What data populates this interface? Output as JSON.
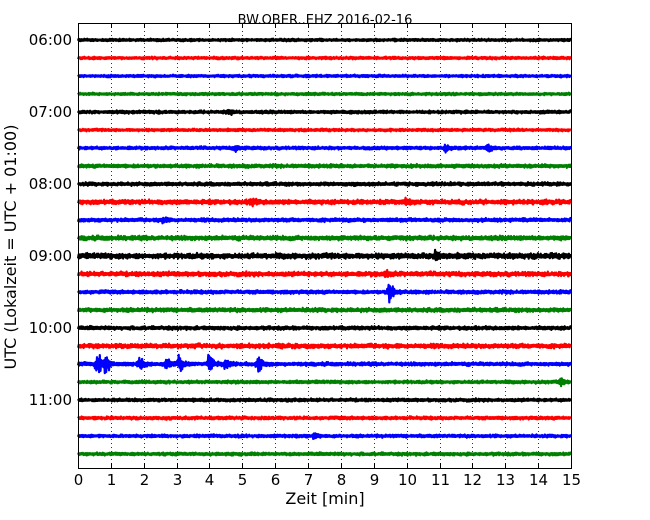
{
  "chart_data": {
    "type": "line",
    "title": "BW.OBER..EHZ 2016-02-16",
    "xlabel": "Zeit  [min]",
    "ylabel": "UTC (Lokalzeit = UTC + 01:00)",
    "xlim": [
      0,
      15
    ],
    "x_ticks": [
      "0",
      "1",
      "2",
      "3",
      "4",
      "5",
      "6",
      "7",
      "8",
      "9",
      "10",
      "11",
      "12",
      "13",
      "14",
      "15"
    ],
    "y_ticks": [
      "06:00",
      "07:00",
      "08:00",
      "09:00",
      "10:00",
      "11:00"
    ],
    "y_tick_hours": [
      6,
      7,
      8,
      9,
      10,
      11
    ],
    "grid": true,
    "trace_interval_min": 15,
    "trace_colors": [
      "#000000",
      "#ff0000",
      "#0000ff",
      "#008000"
    ],
    "traces": [
      {
        "start": "06:00",
        "color": "#000000",
        "amplitude": 0.25
      },
      {
        "start": "06:15",
        "color": "#ff0000",
        "amplitude": 0.25
      },
      {
        "start": "06:30",
        "color": "#0000ff",
        "amplitude": 0.25
      },
      {
        "start": "06:45",
        "color": "#008000",
        "amplitude": 0.25
      },
      {
        "start": "07:00",
        "color": "#000000",
        "amplitude": 0.3,
        "events": [
          {
            "min": 4.6,
            "amp": 0.5
          }
        ]
      },
      {
        "start": "07:15",
        "color": "#ff0000",
        "amplitude": 0.25
      },
      {
        "start": "07:30",
        "color": "#0000ff",
        "amplitude": 0.3,
        "events": [
          {
            "min": 4.8,
            "amp": 0.6
          },
          {
            "min": 11.2,
            "amp": 0.7
          },
          {
            "min": 12.5,
            "amp": 0.8
          }
        ]
      },
      {
        "start": "07:45",
        "color": "#008000",
        "amplitude": 0.35
      },
      {
        "start": "08:00",
        "color": "#000000",
        "amplitude": 0.35
      },
      {
        "start": "08:15",
        "color": "#ff0000",
        "amplitude": 0.45,
        "events": [
          {
            "min": 5.3,
            "amp": 0.8
          },
          {
            "min": 10.0,
            "amp": 0.6
          }
        ]
      },
      {
        "start": "08:30",
        "color": "#0000ff",
        "amplitude": 0.35,
        "events": [
          {
            "min": 2.6,
            "amp": 0.6
          }
        ]
      },
      {
        "start": "08:45",
        "color": "#008000",
        "amplitude": 0.45
      },
      {
        "start": "09:00",
        "color": "#000000",
        "amplitude": 0.55,
        "events": [
          {
            "min": 10.9,
            "amp": 0.8
          }
        ]
      },
      {
        "start": "09:15",
        "color": "#ff0000",
        "amplitude": 0.45,
        "events": [
          {
            "min": 9.4,
            "amp": 0.6
          }
        ]
      },
      {
        "start": "09:30",
        "color": "#0000ff",
        "amplitude": 0.35,
        "events": [
          {
            "min": 9.5,
            "amp": 2.2
          }
        ]
      },
      {
        "start": "09:45",
        "color": "#008000",
        "amplitude": 0.4
      },
      {
        "start": "10:00",
        "color": "#000000",
        "amplitude": 0.35
      },
      {
        "start": "10:15",
        "color": "#ff0000",
        "amplitude": 0.45
      },
      {
        "start": "10:30",
        "color": "#0000ff",
        "amplitude": 0.35,
        "events": [
          {
            "min": 0.6,
            "amp": 2.4
          },
          {
            "min": 0.85,
            "amp": 1.8
          },
          {
            "min": 1.9,
            "amp": 1.2
          },
          {
            "min": 2.7,
            "amp": 1.2
          },
          {
            "min": 3.1,
            "amp": 1.6
          },
          {
            "min": 4.0,
            "amp": 1.9
          },
          {
            "min": 4.5,
            "amp": 1.0
          },
          {
            "min": 5.5,
            "amp": 1.5
          }
        ]
      },
      {
        "start": "10:45",
        "color": "#008000",
        "amplitude": 0.3,
        "events": [
          {
            "min": 14.7,
            "amp": 0.7
          }
        ]
      },
      {
        "start": "11:00",
        "color": "#000000",
        "amplitude": 0.3
      },
      {
        "start": "11:15",
        "color": "#ff0000",
        "amplitude": 0.3
      },
      {
        "start": "11:30",
        "color": "#0000ff",
        "amplitude": 0.3,
        "events": [
          {
            "min": 7.2,
            "amp": 0.5
          }
        ]
      },
      {
        "start": "11:45",
        "color": "#008000",
        "amplitude": 0.3
      }
    ]
  }
}
